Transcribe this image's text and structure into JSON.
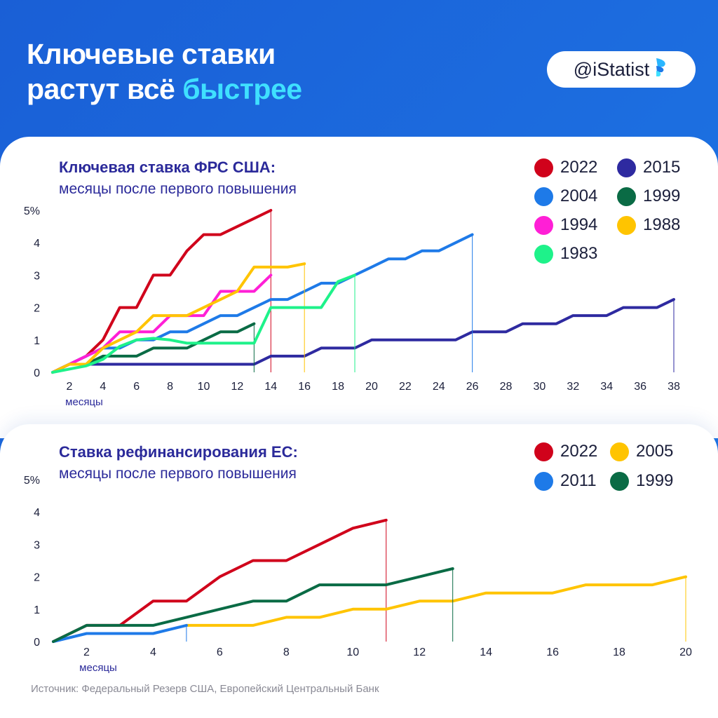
{
  "header": {
    "title_line1": "Ключевые ставки",
    "title_line2_prefix": "растут всё ",
    "title_line2_accent": "быстрее",
    "brand": "@iStatist"
  },
  "colors": {
    "background": "#1a5fd6",
    "accent": "#3fe0ff",
    "title_navy": "#2b2a9a"
  },
  "source": "Источник: Федеральный Резерв США, Европейский Центральный Банк",
  "chart_data": [
    {
      "id": "fed",
      "type": "line",
      "step": true,
      "title": "Ключевая ставка ФРС США:",
      "subtitle": "месяцы после первого повышения",
      "xlabel": "месяцы",
      "xlim": [
        1,
        38
      ],
      "ylim": [
        0,
        5
      ],
      "xticks": [
        2,
        4,
        6,
        8,
        10,
        12,
        14,
        16,
        18,
        20,
        22,
        24,
        26,
        28,
        30,
        32,
        34,
        36,
        38
      ],
      "yticks": [
        "0",
        "1",
        "2",
        "3",
        "4",
        "5%"
      ],
      "legend_columns": 2,
      "series": [
        {
          "name": "2022",
          "color": "#d0021b",
          "end_line": true,
          "values": [
            0,
            0.25,
            0.5,
            1.0,
            2.0,
            2.0,
            3.0,
            3.0,
            3.75,
            4.25,
            4.25,
            4.5,
            4.75,
            5.0
          ]
        },
        {
          "name": "2015",
          "color": "#2e2aa0",
          "end_line": true,
          "values": [
            0,
            0.25,
            0.25,
            0.25,
            0.25,
            0.25,
            0.25,
            0.25,
            0.25,
            0.25,
            0.25,
            0.25,
            0.25,
            0.5,
            0.5,
            0.5,
            0.75,
            0.75,
            0.75,
            1.0,
            1.0,
            1.0,
            1.0,
            1.0,
            1.0,
            1.25,
            1.25,
            1.25,
            1.5,
            1.5,
            1.5,
            1.75,
            1.75,
            1.75,
            2.0,
            2.0,
            2.0,
            2.25
          ]
        },
        {
          "name": "2004",
          "color": "#1e7ae8",
          "end_line": true,
          "values": [
            0,
            0.25,
            0.5,
            0.75,
            0.75,
            1.0,
            1.0,
            1.25,
            1.25,
            1.5,
            1.75,
            1.75,
            2.0,
            2.25,
            2.25,
            2.5,
            2.75,
            2.75,
            3.0,
            3.25,
            3.5,
            3.5,
            3.75,
            3.75,
            4.0,
            4.25
          ]
        },
        {
          "name": "1999",
          "color": "#0a6b45",
          "end_line": true,
          "values": [
            0,
            0.25,
            0.25,
            0.5,
            0.5,
            0.5,
            0.75,
            0.75,
            0.75,
            1.0,
            1.25,
            1.25,
            1.5
          ]
        },
        {
          "name": "1994",
          "color": "#ff1fd6",
          "end_line": false,
          "values": [
            0,
            0.25,
            0.5,
            0.75,
            1.25,
            1.25,
            1.25,
            1.75,
            1.75,
            1.75,
            2.5,
            2.5,
            2.5,
            3.0
          ]
        },
        {
          "name": "1988",
          "color": "#ffc400",
          "end_line": true,
          "values": [
            0,
            0.25,
            0.25,
            0.75,
            1.0,
            1.25,
            1.75,
            1.75,
            1.75,
            2.0,
            2.25,
            2.5,
            3.25,
            3.25,
            3.25,
            3.35
          ]
        },
        {
          "name": "1983",
          "color": "#1ef28a",
          "end_line": true,
          "values": [
            0,
            0.1,
            0.2,
            0.4,
            0.8,
            1.0,
            1.05,
            1.0,
            0.9,
            0.9,
            0.9,
            0.9,
            0.9,
            2.0,
            2.0,
            2.0,
            2.0,
            2.8,
            3.0
          ]
        }
      ]
    },
    {
      "id": "ecb",
      "type": "line",
      "step": true,
      "title": "Ставка рефинансирования ЕС:",
      "subtitle": "месяцы после первого повышения",
      "xlabel": "месяцы",
      "xlim": [
        1,
        20
      ],
      "ylim": [
        0,
        5
      ],
      "xticks": [
        2,
        4,
        6,
        8,
        10,
        12,
        14,
        16,
        18,
        20
      ],
      "yticks": [
        "0",
        "1",
        "2",
        "3",
        "4",
        "5%"
      ],
      "legend_columns": 2,
      "series": [
        {
          "name": "2022",
          "color": "#d0021b",
          "end_line": true,
          "values": [
            0,
            0.5,
            0.5,
            1.25,
            1.25,
            2.0,
            2.5,
            2.5,
            3.0,
            3.5,
            3.75
          ]
        },
        {
          "name": "2005",
          "color": "#ffc400",
          "end_line": true,
          "values": [
            null,
            null,
            null,
            null,
            0.5,
            0.5,
            0.5,
            0.75,
            0.75,
            1.0,
            1.0,
            1.25,
            1.25,
            1.5,
            1.5,
            1.5,
            1.75,
            1.75,
            1.75,
            2.0
          ]
        },
        {
          "name": "2011",
          "color": "#1e7ae8",
          "end_line": true,
          "values": [
            0,
            0.25,
            0.25,
            0.25,
            0.5
          ]
        },
        {
          "name": "1999",
          "color": "#0a6b45",
          "end_line": true,
          "values": [
            0,
            0.5,
            0.5,
            0.5,
            0.75,
            1.0,
            1.25,
            1.25,
            1.75,
            1.75,
            1.75,
            2.0,
            2.25
          ]
        }
      ]
    }
  ]
}
